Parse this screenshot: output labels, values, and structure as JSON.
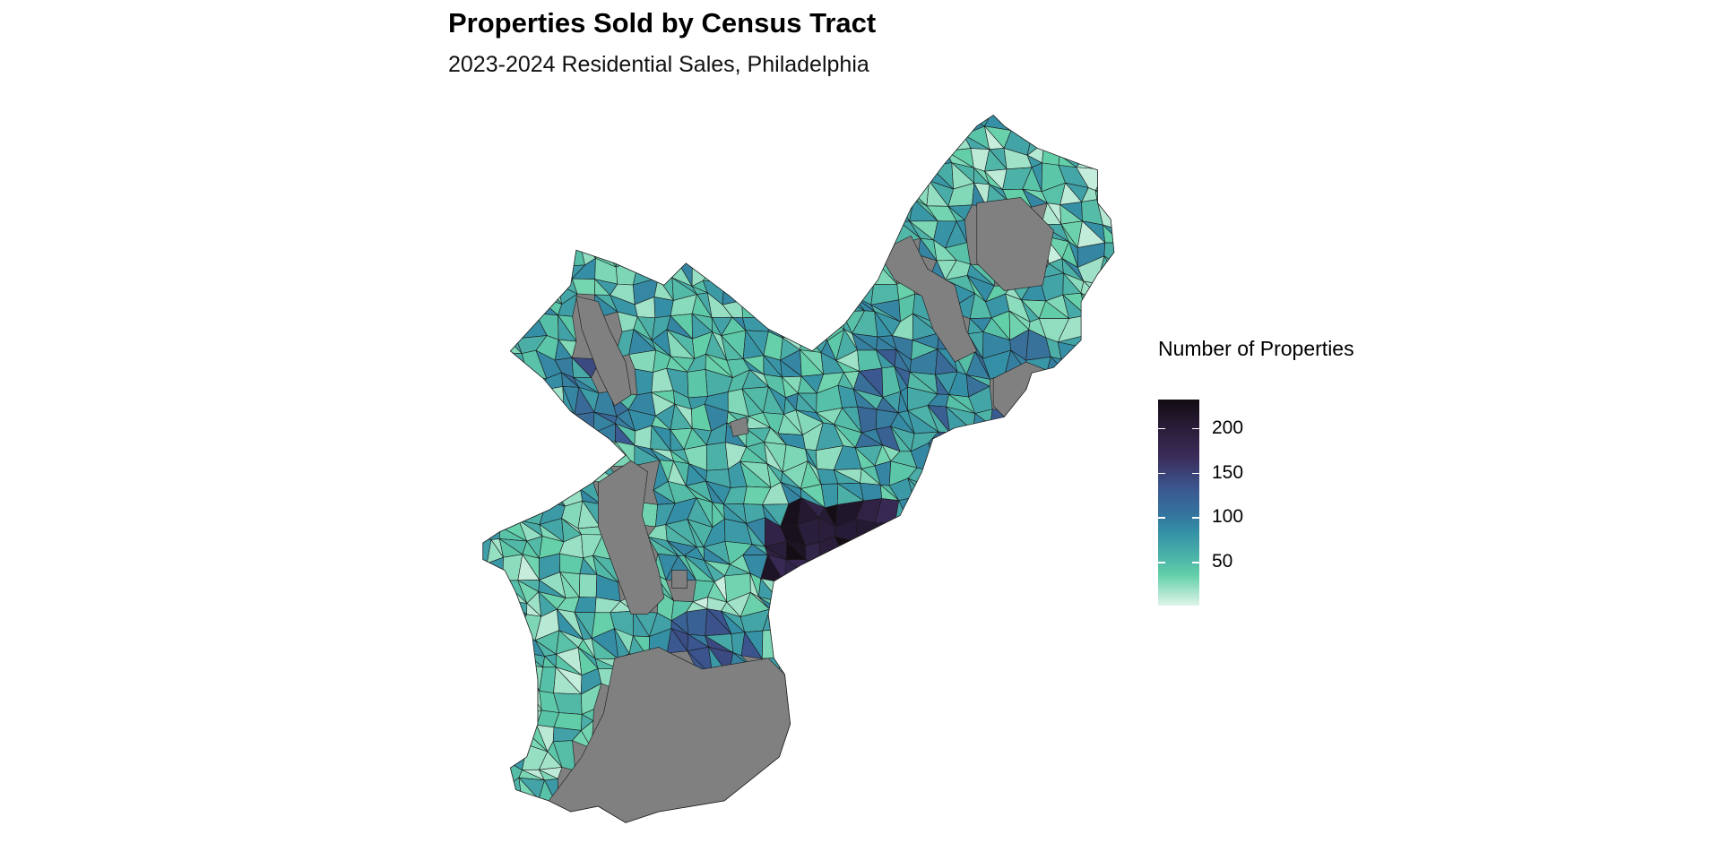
{
  "title": "Properties Sold by Census Tract",
  "subtitle": "2023-2024 Residential Sales, Philadelphia",
  "chart_data": {
    "type": "choropleth",
    "title": "Properties Sold by Census Tract",
    "subtitle": "2023-2024 Residential Sales, Philadelphia",
    "region": "Philadelphia census tracts",
    "legend": {
      "title": "Number of Properties",
      "placement": "right",
      "ticks": [
        200,
        150,
        100,
        50
      ],
      "tick_labels": [
        "200",
        "150",
        "100",
        "50"
      ],
      "range": [
        1,
        232
      ]
    },
    "color_stops": [
      "#dff5e9",
      "#62cfa8",
      "#348fa6",
      "#3b5690",
      "#3b2c5a",
      "#120b12"
    ],
    "na_color": "#808080"
  }
}
